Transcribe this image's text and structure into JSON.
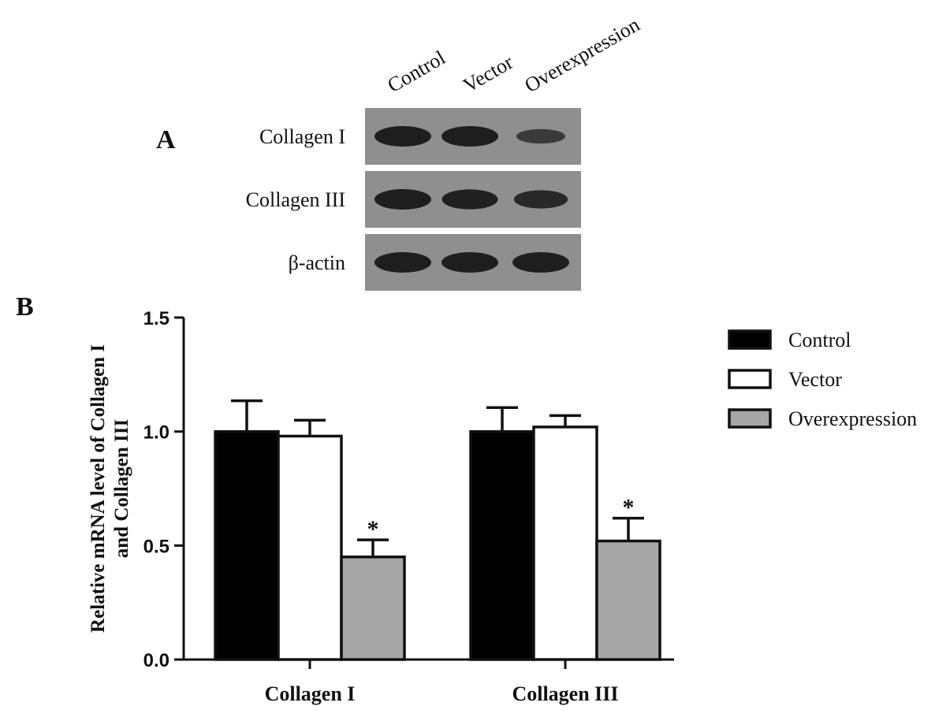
{
  "panel_a": {
    "letter": "A",
    "lanes": [
      "Control",
      "Vector",
      "Overexpression"
    ],
    "rows": [
      {
        "label": "Collagen I",
        "intensities": [
          1.0,
          1.0,
          0.45
        ]
      },
      {
        "label": "Collagen III",
        "intensities": [
          1.0,
          0.95,
          0.8
        ]
      },
      {
        "label": "β-actin",
        "intensities": [
          1.0,
          1.0,
          1.0
        ]
      }
    ],
    "colors": {
      "membrane": "#8f8f8f",
      "band": "#1e1e1e"
    }
  },
  "panel_b": {
    "letter": "B"
  },
  "chart_data": {
    "type": "bar",
    "categories": [
      "Collagen I",
      "Collagen III"
    ],
    "series": [
      {
        "name": "Control",
        "color": "#000000",
        "values": [
          1.0,
          1.0
        ],
        "errors": [
          0.135,
          0.105
        ],
        "sig": [
          "",
          ""
        ]
      },
      {
        "name": "Vector",
        "color": "#ffffff",
        "values": [
          0.98,
          1.02
        ],
        "errors": [
          0.07,
          0.05
        ],
        "sig": [
          "",
          ""
        ]
      },
      {
        "name": "Overexpression",
        "color": "#a6a6a6",
        "values": [
          0.45,
          0.52
        ],
        "errors": [
          0.075,
          0.1
        ],
        "sig": [
          "*",
          "*"
        ]
      }
    ],
    "ylabel_lines": [
      "Relative  mRNA level of  Collagen I",
      "and Collagen III"
    ],
    "xlabel": "",
    "ylim": [
      0,
      1.5
    ],
    "yticks": [
      "0.0",
      "0.5",
      "1.0",
      "1.5"
    ],
    "legend_position": "right",
    "grid": false
  }
}
